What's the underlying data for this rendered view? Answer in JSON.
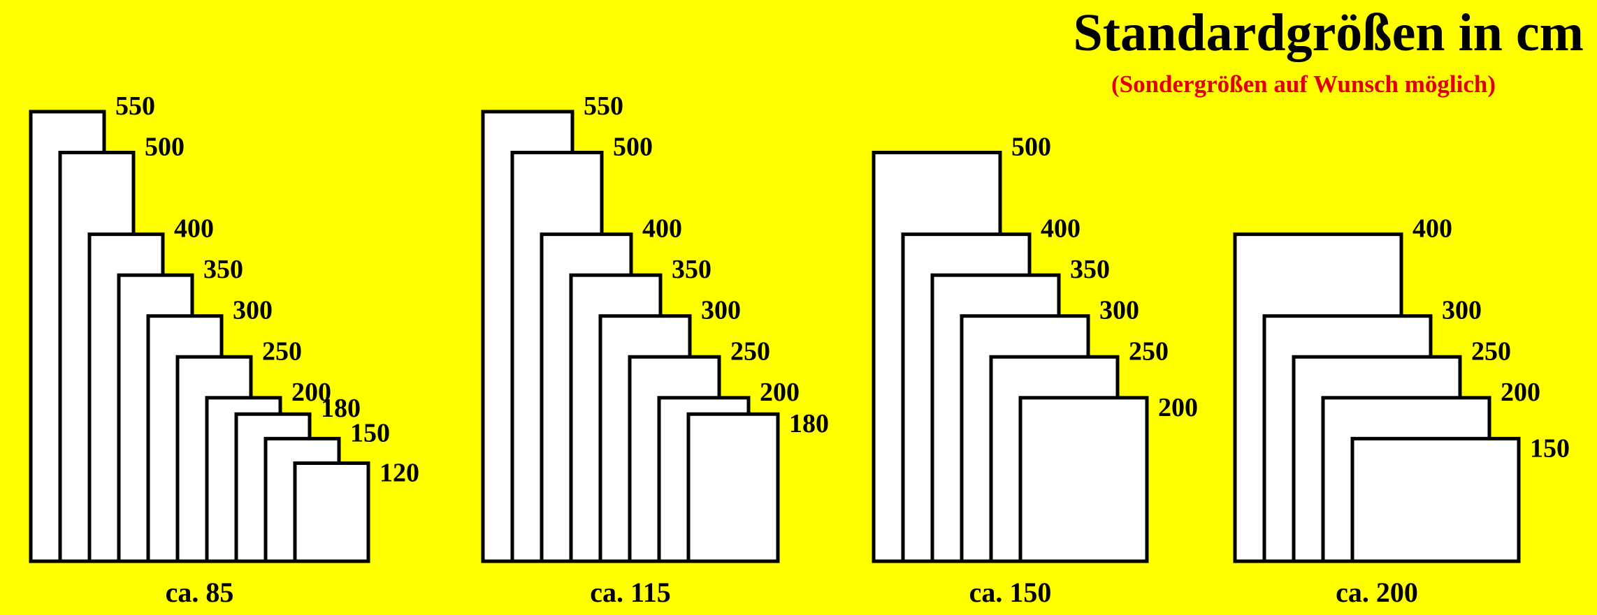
{
  "header": {
    "title": "Standardgrößen in cm",
    "subtitle": "(Sondergrößen auf Wunsch möglich)"
  },
  "groups": [
    {
      "label": "ca. 85",
      "sizes": [
        550,
        500,
        400,
        350,
        300,
        250,
        200,
        180,
        150,
        120
      ]
    },
    {
      "label": "ca. 115",
      "sizes": [
        550,
        500,
        400,
        350,
        300,
        250,
        200,
        180
      ]
    },
    {
      "label": "ca. 150",
      "sizes": [
        500,
        400,
        350,
        300,
        250,
        200
      ]
    },
    {
      "label": "ca. 200",
      "sizes": [
        400,
        300,
        250,
        200,
        150
      ]
    }
  ]
}
